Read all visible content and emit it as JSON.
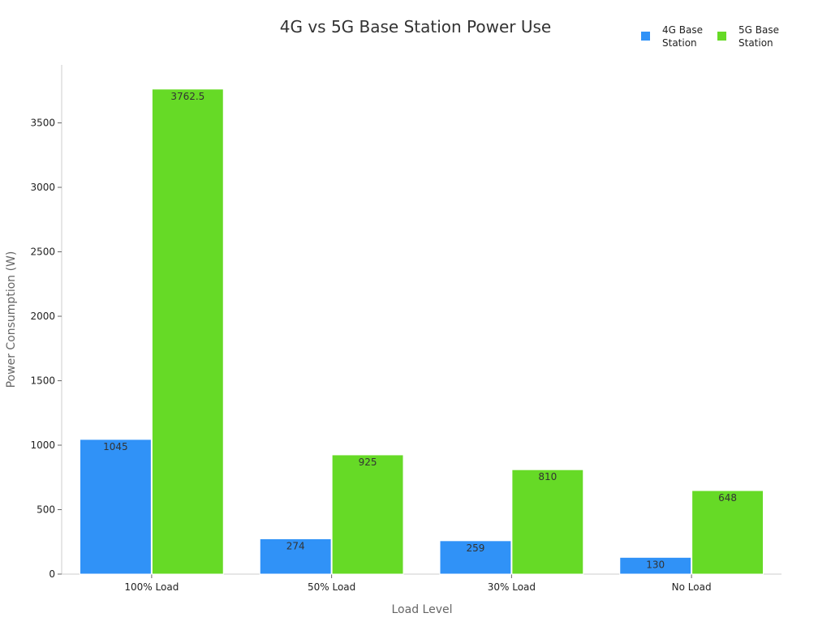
{
  "chart_data": {
    "type": "bar",
    "title": "4G vs 5G Base Station Power Use",
    "xlabel": "Load Level",
    "ylabel": "Power Consumption (W)",
    "categories": [
      "100% Load",
      "50% Load",
      "30% Load",
      "No Load"
    ],
    "series": [
      {
        "name": "4G Base Station",
        "legend_lines": [
          "4G Base",
          "Station"
        ],
        "color": "#3092f7",
        "values": [
          1045,
          274,
          259,
          130
        ],
        "labels": [
          "1045",
          "274",
          "259",
          "130"
        ]
      },
      {
        "name": "5G Base Station",
        "legend_lines": [
          "5G Base",
          "Station"
        ],
        "color": "#66da26",
        "values": [
          3762.5,
          925,
          810,
          648
        ],
        "labels": [
          "3762.5",
          "925",
          "810",
          "648"
        ]
      }
    ],
    "ylim": [
      0,
      3950
    ],
    "yticks": [
      0,
      500,
      1000,
      1500,
      2000,
      2500,
      3000,
      3500
    ],
    "grid": false,
    "legend_position": "top-right"
  }
}
